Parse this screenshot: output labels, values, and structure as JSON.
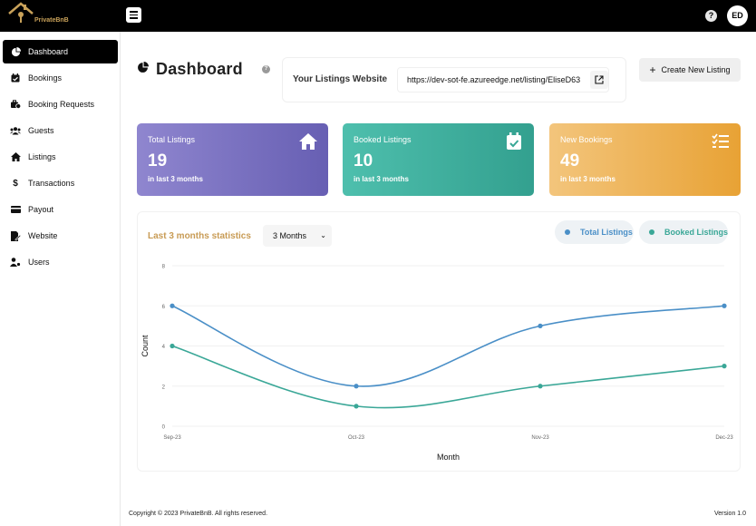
{
  "brand": {
    "name": "PrivateBnB"
  },
  "header": {
    "help_label": "?",
    "avatar_initials": "ED"
  },
  "sidebar": {
    "items": [
      {
        "label": "Dashboard",
        "icon": "pie-chart-icon",
        "active": true
      },
      {
        "label": "Bookings",
        "icon": "calendar-check-icon"
      },
      {
        "label": "Booking Requests",
        "icon": "briefcase-clock-icon"
      },
      {
        "label": "Guests",
        "icon": "users-icon"
      },
      {
        "label": "Listings",
        "icon": "home-icon"
      },
      {
        "label": "Transactions",
        "icon": "dollar-icon"
      },
      {
        "label": "Payout",
        "icon": "credit-card-icon"
      },
      {
        "label": "Website",
        "icon": "file-edit-icon"
      },
      {
        "label": "Users",
        "icon": "user-gear-icon"
      }
    ]
  },
  "page": {
    "title": "Dashboard",
    "help_label": "?"
  },
  "website": {
    "label": "Your Listings Website",
    "url": "https://dev-sot-fe.azureedge.net/listing/EliseD63"
  },
  "actions": {
    "create_label": "Create New Listing"
  },
  "cards": [
    {
      "title": "Total Listings",
      "value": "19",
      "sub": "in last 3 months",
      "icon": "home-icon"
    },
    {
      "title": "Booked Listings",
      "value": "10",
      "sub": "in last 3 months",
      "icon": "calendar-check-icon"
    },
    {
      "title": "New Bookings",
      "value": "49",
      "sub": "in last 3 months",
      "icon": "checklist-icon"
    }
  ],
  "stats": {
    "title": "Last 3 months statistics",
    "range_selected": "3 Months",
    "legend": [
      "Total Listings",
      "Booked Listings"
    ]
  },
  "colors": {
    "total": "#4a8fc7",
    "booked": "#3aa797",
    "accent": "#c89b54"
  },
  "chart_data": {
    "type": "line",
    "title": "Last 3 months statistics",
    "categories": [
      "Sep-23",
      "Oct-23",
      "Nov-23",
      "Dec-23"
    ],
    "series": [
      {
        "name": "Total Listings",
        "values": [
          6,
          2,
          5,
          6
        ]
      },
      {
        "name": "Booked Listings",
        "values": [
          4,
          1,
          2,
          3
        ]
      }
    ],
    "xlabel": "Month",
    "ylabel": "Count",
    "ylim": [
      0,
      8
    ],
    "yticks": [
      0,
      2,
      4,
      6,
      8
    ],
    "grid": true,
    "legend": "top-right"
  },
  "footer": {
    "copyright": "Copyright © 2023 PrivateBnB. All rights reserved.",
    "version": "Version 1.0"
  }
}
